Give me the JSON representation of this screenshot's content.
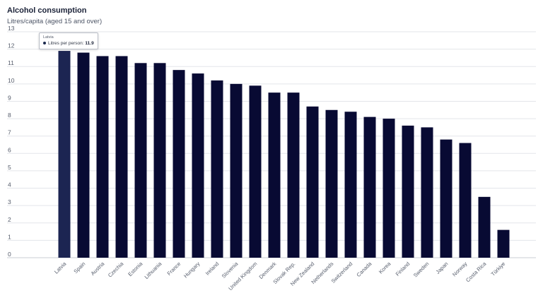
{
  "chart_data": {
    "type": "bar",
    "title": "Alcohol consumption",
    "ylabel": "Litres/capita (aged 15 and over)",
    "xlabel": "",
    "ylim": [
      0,
      13
    ],
    "yticks": [
      0,
      1,
      2,
      3,
      4,
      5,
      6,
      7,
      8,
      9,
      10,
      11,
      12,
      13
    ],
    "grid": true,
    "categories": [
      "Latvia",
      "Spain",
      "Austria",
      "Czechia",
      "Estonia",
      "Lithuania",
      "France",
      "Hungary",
      "Ireland",
      "Slovenia",
      "United Kingdom",
      "Denmark",
      "Slovak Rep.",
      "New Zealand",
      "Netherlands",
      "Switzerland",
      "Canada",
      "Korea",
      "Finland",
      "Sweden",
      "Japan",
      "Norway",
      "Costa Rica",
      "Türkiye"
    ],
    "values": [
      11.9,
      11.8,
      11.6,
      11.6,
      11.2,
      11.2,
      10.8,
      10.6,
      10.2,
      10.0,
      9.9,
      9.5,
      9.5,
      8.7,
      8.5,
      8.4,
      8.1,
      8.0,
      7.6,
      7.5,
      6.8,
      6.6,
      3.5,
      1.6
    ],
    "colors": {
      "bar": "#080a33",
      "bar_highlight": "#1c2552",
      "grid": "#e3e5ea",
      "axis": "#c9ccd3"
    },
    "highlighted_index": 0
  },
  "tooltip": {
    "country": "Latvia",
    "measure_label": "Litres per person:",
    "value": "11.9"
  }
}
